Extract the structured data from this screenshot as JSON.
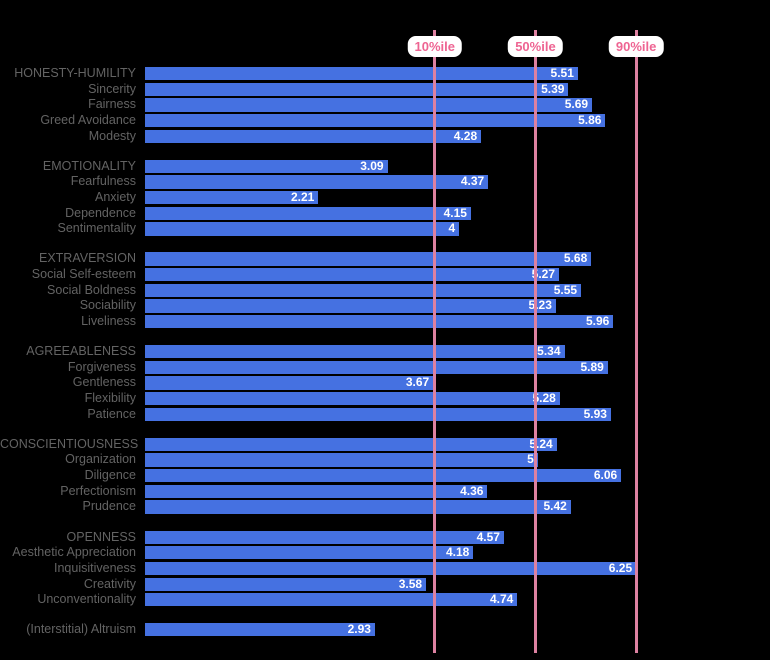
{
  "chart_data": {
    "type": "bar",
    "orientation": "horizontal",
    "title": "",
    "xlabel": "",
    "ylabel": "",
    "xlim": [
      0,
      7
    ],
    "grid": false,
    "legend": "none",
    "percentile_markers": [
      {
        "label": "10%ile",
        "score": 3.69
      },
      {
        "label": "50%ile",
        "score": 4.97
      },
      {
        "label": "90%ile",
        "score": 6.25
      }
    ],
    "groups": [
      {
        "label": "HONESTY-HUMILITY",
        "score": 5.51,
        "display": "5.51",
        "facets": [
          {
            "label": "Sincerity",
            "score": 5.39,
            "display": "5.39"
          },
          {
            "label": "Fairness",
            "score": 5.69,
            "display": "5.69"
          },
          {
            "label": "Greed Avoidance",
            "score": 5.86,
            "display": "5.86"
          },
          {
            "label": "Modesty",
            "score": 4.28,
            "display": "4.28"
          }
        ]
      },
      {
        "label": "EMOTIONALITY",
        "score": 3.09,
        "display": "3.09",
        "facets": [
          {
            "label": "Fearfulness",
            "score": 4.37,
            "display": "4.37"
          },
          {
            "label": "Anxiety",
            "score": 2.21,
            "display": "2.21"
          },
          {
            "label": "Dependence",
            "score": 4.15,
            "display": "4.15"
          },
          {
            "label": "Sentimentality",
            "score": 4.0,
            "display": "4"
          }
        ]
      },
      {
        "label": "EXTRAVERSION",
        "score": 5.68,
        "display": "5.68",
        "facets": [
          {
            "label": "Social Self-esteem",
            "score": 5.27,
            "display": "5.27"
          },
          {
            "label": "Social Boldness",
            "score": 5.55,
            "display": "5.55"
          },
          {
            "label": "Sociability",
            "score": 5.23,
            "display": "5.23"
          },
          {
            "label": "Liveliness",
            "score": 5.96,
            "display": "5.96"
          }
        ]
      },
      {
        "label": "AGREEABLENESS",
        "score": 5.34,
        "display": "5.34",
        "facets": [
          {
            "label": "Forgiveness",
            "score": 5.89,
            "display": "5.89"
          },
          {
            "label": "Gentleness",
            "score": 3.67,
            "display": "3.67"
          },
          {
            "label": "Flexibility",
            "score": 5.28,
            "display": "5.28"
          },
          {
            "label": "Patience",
            "score": 5.93,
            "display": "5.93"
          }
        ]
      },
      {
        "label": "CONSCIENTIOUSNESS",
        "score": 5.24,
        "display": "5.24",
        "facets": [
          {
            "label": "Organization",
            "score": 5.0,
            "display": "5"
          },
          {
            "label": "Diligence",
            "score": 6.06,
            "display": "6.06"
          },
          {
            "label": "Perfectionism",
            "score": 4.36,
            "display": "4.36"
          },
          {
            "label": "Prudence",
            "score": 5.42,
            "display": "5.42"
          }
        ]
      },
      {
        "label": "OPENNESS",
        "score": 4.57,
        "display": "4.57",
        "facets": [
          {
            "label": "Aesthetic Appreciation",
            "score": 4.18,
            "display": "4.18"
          },
          {
            "label": "Inquisitiveness",
            "score": 6.25,
            "display": "6.25"
          },
          {
            "label": "Creativity",
            "score": 3.58,
            "display": "3.58"
          },
          {
            "label": "Unconventionality",
            "score": 4.74,
            "display": "4.74"
          }
        ]
      }
    ],
    "extra_rows": [
      {
        "label": "(Interstitial) Altruism",
        "score": 2.93,
        "display": "2.93"
      }
    ]
  },
  "colors": {
    "background": "#000000",
    "bar": "#4571e1",
    "bar_value_text": "#ffffff",
    "row_label_text": "#636363",
    "marker_line": "#dd81a1",
    "marker_text": "#ee6492",
    "marker_box_bg": "#ffffff"
  }
}
